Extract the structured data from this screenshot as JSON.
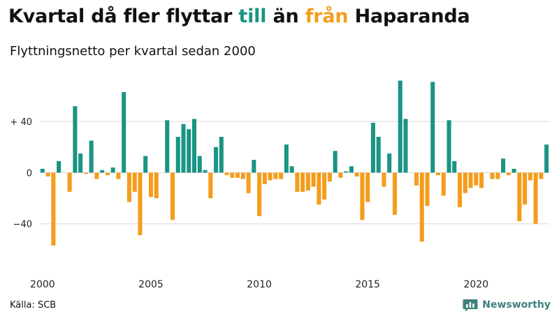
{
  "title": {
    "prefix": "Kvartal då fler flyttar ",
    "in_word": "till",
    "middle": " än ",
    "out_word": "från",
    "suffix": " Haparanda"
  },
  "subtitle": "Flyttningsnetto per kvartal sedan 2000",
  "source": "Källa: SCB",
  "brand": "Newsworthy",
  "colors": {
    "positive": "#1a9483",
    "negative": "#f49d1c",
    "in_word": "#1a9483",
    "out_word": "#f49d1c",
    "grid": "#d9d9d9",
    "brand": "#3d7f7a"
  },
  "chart_data": {
    "type": "bar",
    "x_start": "2000 Q1",
    "x_tick_labels": [
      "2000",
      "2005",
      "2010",
      "2015",
      "2020"
    ],
    "y_ticks": [
      40,
      0,
      -40
    ],
    "y_tick_labels": [
      "+ 40",
      "0",
      "−40"
    ],
    "ylim": [
      -74,
      75
    ],
    "grid": true,
    "values": [
      3,
      -3,
      -57,
      9,
      0,
      -15,
      52,
      15,
      -1,
      25,
      -5,
      2,
      -2,
      4,
      -5,
      63,
      -23,
      -15,
      -49,
      13,
      -19,
      -20,
      0,
      41,
      -37,
      28,
      38,
      34,
      42,
      13,
      2,
      -20,
      20,
      28,
      -2,
      -4,
      -4,
      -5,
      -16,
      10,
      -34,
      -9,
      -6,
      -5,
      -5,
      22,
      5,
      -15,
      -15,
      -14,
      -11,
      -25,
      -21,
      -7,
      17,
      -4,
      1,
      5,
      -3,
      -37,
      -23,
      39,
      28,
      -11,
      15,
      -33,
      72,
      42,
      0,
      -10,
      -54,
      -26,
      71,
      -2,
      -18,
      41,
      9,
      -27,
      -16,
      -12,
      -10,
      -12,
      0,
      -5,
      -5,
      11,
      -2,
      3,
      -38,
      -25,
      -6,
      -40,
      -5,
      22
    ]
  }
}
